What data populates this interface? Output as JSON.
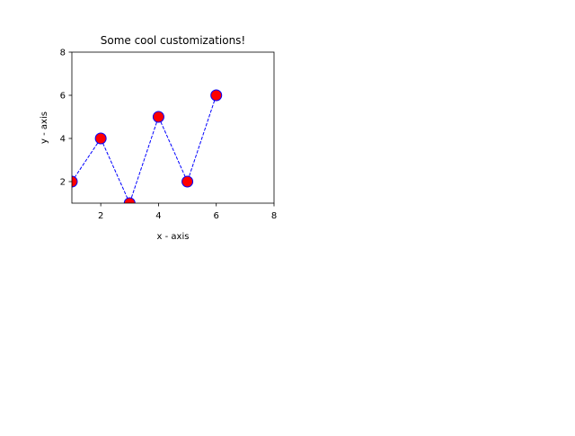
{
  "chart_data": {
    "type": "line",
    "title": "Some cool customizations!",
    "xlabel": "x - axis",
    "ylabel": "y - axis",
    "xlim": [
      1,
      8
    ],
    "ylim": [
      1,
      8
    ],
    "xticks": [
      2,
      4,
      6,
      8
    ],
    "yticks": [
      2,
      4,
      6,
      8
    ],
    "grid": false,
    "series": [
      {
        "x": [
          1,
          2,
          3,
          4,
          5,
          6
        ],
        "y": [
          2,
          4,
          1,
          5,
          2,
          6
        ],
        "line_color": "#0000ff",
        "line_style": "dashed",
        "marker": "circle",
        "marker_face_color": "#ff0000",
        "marker_edge_color": "#0000ff"
      }
    ]
  }
}
